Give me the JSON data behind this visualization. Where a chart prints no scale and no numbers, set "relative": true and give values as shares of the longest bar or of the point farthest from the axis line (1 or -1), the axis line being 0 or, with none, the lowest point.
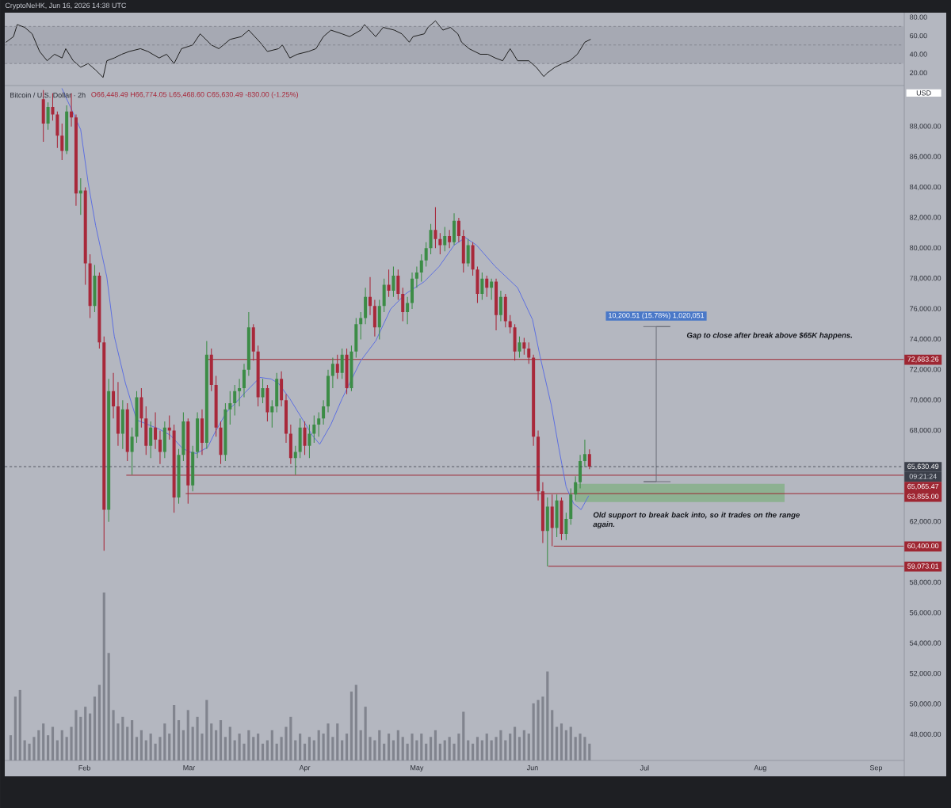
{
  "chart_data": [
    {
      "type": "line",
      "title": "CryptoNeHK, Jun 16, 2026 14:38 UTC",
      "xlim": [
        "2026-01-10T16:00",
        "2026-09-08T08:00"
      ],
      "ylim": [
        8,
        84
      ],
      "yticks": [
        {
          "value": 20,
          "label": "20.00"
        },
        {
          "value": 40,
          "label": "40.00"
        },
        {
          "value": 60,
          "label": "60.00"
        },
        {
          "value": 80,
          "label": "80.00"
        }
      ],
      "tick_labels": "y",
      "bands": [
        {
          "axis": "y",
          "from": 30,
          "to": 70,
          "color": "#a6a9b3"
        }
      ],
      "ref_lines": [
        {
          "axis": "y",
          "value": 70,
          "color": "#7d808a",
          "line_style": "dashed"
        },
        {
          "axis": "y",
          "value": 50,
          "color": "#7d808a",
          "line_style": "dashed"
        },
        {
          "axis": "y",
          "value": 30,
          "color": "#7d808a",
          "line_style": "dashed"
        }
      ],
      "x": [
        "2026-01-11",
        "2026-01-13",
        "2026-01-14",
        "2026-01-16",
        "2026-01-18",
        "2026-01-20",
        "2026-01-22",
        "2026-01-24",
        "2026-01-26",
        "2026-01-27",
        "2026-01-29",
        "2026-01-31",
        "2026-02-02",
        "2026-02-04",
        "2026-02-06",
        "2026-02-07",
        "2026-02-09",
        "2026-02-11",
        "2026-02-13",
        "2026-02-16",
        "2026-02-18",
        "2026-02-21",
        "2026-02-23",
        "2026-02-25",
        "2026-02-27",
        "2026-03-02",
        "2026-03-04",
        "2026-03-07",
        "2026-03-09",
        "2026-03-12",
        "2026-03-15",
        "2026-03-17",
        "2026-03-20",
        "2026-03-22",
        "2026-03-25",
        "2026-03-26",
        "2026-03-28",
        "2026-03-30",
        "2026-04-02",
        "2026-04-04",
        "2026-04-06",
        "2026-04-08",
        "2026-04-11",
        "2026-04-13",
        "2026-04-16",
        "2026-04-17",
        "2026-04-20",
        "2026-04-22",
        "2026-04-25",
        "2026-04-27",
        "2026-04-29",
        "2026-04-30",
        "2026-05-03",
        "2026-05-04",
        "2026-05-06",
        "2026-05-08",
        "2026-05-10",
        "2026-05-12",
        "2026-05-13",
        "2026-05-15",
        "2026-05-18",
        "2026-05-20",
        "2026-05-22",
        "2026-05-24",
        "2026-05-26",
        "2026-05-28",
        "2026-05-31",
        "2026-06-02",
        "2026-06-04",
        "2026-06-05",
        "2026-06-07",
        "2026-06-09",
        "2026-06-11",
        "2026-06-13",
        "2026-06-15",
        "2026-06-16T12:00"
      ],
      "series": [
        {
          "color": "#1e1e1e",
          "values": [
            53,
            59,
            72,
            69,
            62,
            43,
            33,
            40,
            36,
            46,
            33,
            26,
            30,
            23,
            15,
            33,
            36,
            40,
            43,
            46,
            43,
            36,
            40,
            30,
            46,
            50,
            62,
            50,
            46,
            56,
            59,
            66,
            53,
            43,
            46,
            50,
            36,
            40,
            43,
            46,
            59,
            66,
            62,
            59,
            66,
            72,
            59,
            69,
            66,
            62,
            53,
            59,
            62,
            69,
            76,
            66,
            69,
            62,
            53,
            46,
            40,
            40,
            36,
            33,
            46,
            33,
            33,
            26,
            16,
            20,
            26,
            30,
            33,
            40,
            53,
            56
          ]
        }
      ]
    },
    {
      "type": "candlestick",
      "title": "Bitcoin / U.S. Dollar · 2h",
      "subtitle": "O66,448.49 H66,774.05 L65,468.60 C65,630.49 -830.00 (-1.25%)",
      "xlim": [
        "2026-01-10T16:00",
        "2026-09-08T08:00"
      ],
      "ylim": [
        46300,
        90600
      ],
      "xticks": [
        {
          "value": "2026-02-01",
          "label": "Feb"
        },
        {
          "value": "2026-03-01",
          "label": "Mar"
        },
        {
          "value": "2026-04-01",
          "label": "Apr"
        },
        {
          "value": "2026-05-01",
          "label": "May"
        },
        {
          "value": "2026-06-01",
          "label": "Jun"
        },
        {
          "value": "2026-07-01",
          "label": "Jul"
        },
        {
          "value": "2026-08-01",
          "label": "Aug"
        },
        {
          "value": "2026-09-01",
          "label": "Sep"
        }
      ],
      "yticks": [
        {
          "value": 48000,
          "label": "48,000.00"
        },
        {
          "value": 50000,
          "label": "50,000.00"
        },
        {
          "value": 52000,
          "label": "52,000.00"
        },
        {
          "value": 54000,
          "label": "54,000.00"
        },
        {
          "value": 56000,
          "label": "56,000.00"
        },
        {
          "value": 58000,
          "label": "58,000.00"
        },
        {
          "value": 62000,
          "label": "62,000.00"
        },
        {
          "value": 68000,
          "label": "68,000.00"
        },
        {
          "value": 70000,
          "label": "70,000.00"
        },
        {
          "value": 72000,
          "label": "72,000.00"
        },
        {
          "value": 74000,
          "label": "74,000.00"
        },
        {
          "value": 76000,
          "label": "76,000.00"
        },
        {
          "value": 78000,
          "label": "78,000.00"
        },
        {
          "value": 80000,
          "label": "80,000.00"
        },
        {
          "value": 82000,
          "label": "82,000.00"
        },
        {
          "value": 84000,
          "label": "84,000.00"
        },
        {
          "value": 86000,
          "label": "86,000.00"
        },
        {
          "value": 88000,
          "label": "88,000.00"
        }
      ],
      "x": [
        "2026-01-21T00:00",
        "2026-01-22T06:00",
        "2026-01-23T12:00",
        "2026-01-24T18:00",
        "2026-01-26T00:00",
        "2026-01-27T06:00",
        "2026-01-28T12:00",
        "2026-01-29T18:00",
        "2026-01-31T00:00",
        "2026-02-01T06:00",
        "2026-02-02T12:00",
        "2026-02-03T18:00",
        "2026-02-05T00:00",
        "2026-02-06T06:00",
        "2026-02-07T12:00",
        "2026-02-08T18:00",
        "2026-02-10T00:00",
        "2026-02-11T06:00",
        "2026-02-12T12:00",
        "2026-02-13T18:00",
        "2026-02-15T00:00",
        "2026-02-16T06:00",
        "2026-02-17T12:00",
        "2026-02-18T18:00",
        "2026-02-20T00:00",
        "2026-02-21T06:00",
        "2026-02-22T12:00",
        "2026-02-23T18:00",
        "2026-02-25T00:00",
        "2026-02-26T06:00",
        "2026-02-27T12:00",
        "2026-02-28T18:00",
        "2026-03-02T00:00",
        "2026-03-03T06:00",
        "2026-03-04T12:00",
        "2026-03-05T18:00",
        "2026-03-07T00:00",
        "2026-03-08T06:00",
        "2026-03-09T12:00",
        "2026-03-10T18:00",
        "2026-03-12T00:00",
        "2026-03-13T06:00",
        "2026-03-14T12:00",
        "2026-03-15T18:00",
        "2026-03-17T00:00",
        "2026-03-18T06:00",
        "2026-03-19T12:00",
        "2026-03-20T18:00",
        "2026-03-22T00:00",
        "2026-03-23T06:00",
        "2026-03-24T12:00",
        "2026-03-25T18:00",
        "2026-03-27T00:00",
        "2026-03-28T06:00",
        "2026-03-29T12:00",
        "2026-03-30T18:00",
        "2026-04-01T00:00",
        "2026-04-02T06:00",
        "2026-04-03T12:00",
        "2026-04-04T18:00",
        "2026-04-06T00:00",
        "2026-04-07T06:00",
        "2026-04-08T12:00",
        "2026-04-09T18:00",
        "2026-04-11T00:00",
        "2026-04-12T06:00",
        "2026-04-13T12:00",
        "2026-04-14T18:00",
        "2026-04-16T00:00",
        "2026-04-17T06:00",
        "2026-04-18T12:00",
        "2026-04-19T18:00",
        "2026-04-21T00:00",
        "2026-04-22T06:00",
        "2026-04-23T12:00",
        "2026-04-24T18:00",
        "2026-04-26T00:00",
        "2026-04-27T06:00",
        "2026-04-28T12:00",
        "2026-04-29T18:00",
        "2026-05-01T00:00",
        "2026-05-02T06:00",
        "2026-05-03T12:00",
        "2026-05-04T18:00",
        "2026-05-06T00:00",
        "2026-05-07T06:00",
        "2026-05-08T12:00",
        "2026-05-09T18:00",
        "2026-05-11T00:00",
        "2026-05-12T06:00",
        "2026-05-13T12:00",
        "2026-05-14T18:00",
        "2026-05-16T00:00",
        "2026-05-17T06:00",
        "2026-05-18T12:00",
        "2026-05-19T18:00",
        "2026-05-21T00:00",
        "2026-05-22T06:00",
        "2026-05-23T12:00",
        "2026-05-24T18:00",
        "2026-05-26T00:00",
        "2026-05-27T06:00",
        "2026-05-28T12:00",
        "2026-05-29T18:00",
        "2026-05-31T00:00",
        "2026-06-01T06:00",
        "2026-06-02T12:00",
        "2026-06-03T18:00",
        "2026-06-05T00:00",
        "2026-06-06T06:00",
        "2026-06-07T12:00",
        "2026-06-08T18:00",
        "2026-06-10T00:00",
        "2026-06-11T06:00",
        "2026-06-12T12:00",
        "2026-06-13T18:00",
        "2026-06-15T00:00",
        "2026-06-16T06:00"
      ],
      "ohlc": [
        [
          89800,
          90400,
          87000,
          88200
        ],
        [
          88200,
          89600,
          87800,
          89300
        ],
        [
          89300,
          90200,
          88400,
          88800
        ],
        [
          88800,
          89000,
          86600,
          87400
        ],
        [
          87400,
          88200,
          85800,
          86400
        ],
        [
          86400,
          89400,
          86200,
          89000
        ],
        [
          89000,
          90200,
          88000,
          88600
        ],
        [
          88600,
          88800,
          82800,
          83600
        ],
        [
          83600,
          84600,
          82200,
          83800
        ],
        [
          83800,
          84000,
          77600,
          79000
        ],
        [
          79000,
          79600,
          75400,
          76200
        ],
        [
          76200,
          78900,
          75800,
          78200
        ],
        [
          78200,
          78400,
          73400,
          73800
        ],
        [
          73800,
          74200,
          60100,
          62800
        ],
        [
          62800,
          71400,
          62000,
          70600
        ],
        [
          70600,
          71800,
          68800,
          69600
        ],
        [
          69600,
          71200,
          67000,
          67800
        ],
        [
          67800,
          70000,
          66800,
          69400
        ],
        [
          69400,
          69800,
          66000,
          66600
        ],
        [
          66600,
          68200,
          65100,
          67600
        ],
        [
          67600,
          70600,
          67200,
          70200
        ],
        [
          70200,
          70800,
          68200,
          68800
        ],
        [
          68800,
          69600,
          66400,
          67000
        ],
        [
          67000,
          68600,
          66200,
          68200
        ],
        [
          68200,
          69200,
          66800,
          67400
        ],
        [
          67400,
          68000,
          65800,
          66600
        ],
        [
          66600,
          68600,
          66200,
          68200
        ],
        [
          68200,
          69000,
          67400,
          68000
        ],
        [
          68000,
          68400,
          62600,
          63600
        ],
        [
          63600,
          66800,
          63200,
          66400
        ],
        [
          66400,
          69200,
          66000,
          68600
        ],
        [
          68600,
          68800,
          63200,
          64400
        ],
        [
          64400,
          67000,
          64000,
          66600
        ],
        [
          66600,
          69200,
          66200,
          68800
        ],
        [
          68800,
          69400,
          66400,
          67200
        ],
        [
          67200,
          73900,
          66800,
          73000
        ],
        [
          73000,
          73400,
          70600,
          71000
        ],
        [
          71000,
          71600,
          67600,
          68200
        ],
        [
          68200,
          68600,
          65800,
          66400
        ],
        [
          66400,
          69800,
          66000,
          69400
        ],
        [
          69400,
          70600,
          68400,
          69800
        ],
        [
          69800,
          71000,
          69000,
          70600
        ],
        [
          70600,
          71400,
          69600,
          70800
        ],
        [
          70800,
          72400,
          70200,
          72000
        ],
        [
          72000,
          75800,
          71600,
          74800
        ],
        [
          74800,
          75000,
          72600,
          73200
        ],
        [
          73200,
          73600,
          69600,
          70200
        ],
        [
          70200,
          71400,
          69800,
          70800
        ],
        [
          70800,
          71000,
          68600,
          69200
        ],
        [
          69200,
          70000,
          68200,
          69600
        ],
        [
          69600,
          71800,
          69200,
          71400
        ],
        [
          71400,
          71900,
          69600,
          70000
        ],
        [
          70000,
          70400,
          67200,
          67800
        ],
        [
          67800,
          68400,
          65800,
          66200
        ],
        [
          66200,
          67000,
          65100,
          66600
        ],
        [
          66600,
          68800,
          66200,
          68200
        ],
        [
          68200,
          68600,
          66400,
          67000
        ],
        [
          67000,
          68400,
          66200,
          67800
        ],
        [
          67800,
          69000,
          67200,
          68400
        ],
        [
          68400,
          69200,
          67600,
          68800
        ],
        [
          68800,
          70000,
          68400,
          69600
        ],
        [
          69600,
          72000,
          69200,
          71600
        ],
        [
          71600,
          72800,
          70800,
          72400
        ],
        [
          72400,
          73000,
          71400,
          71800
        ],
        [
          71800,
          73400,
          71400,
          73000
        ],
        [
          73000,
          73400,
          70400,
          70800
        ],
        [
          70800,
          73600,
          70600,
          73200
        ],
        [
          73200,
          75400,
          72800,
          75000
        ],
        [
          75000,
          75800,
          74000,
          75400
        ],
        [
          75400,
          77400,
          75000,
          76800
        ],
        [
          76800,
          78100,
          75600,
          76200
        ],
        [
          76200,
          76600,
          74200,
          74800
        ],
        [
          74800,
          76600,
          74000,
          76200
        ],
        [
          76200,
          78000,
          75800,
          77600
        ],
        [
          77600,
          78600,
          76800,
          77200
        ],
        [
          77200,
          78800,
          76800,
          78200
        ],
        [
          78200,
          78600,
          76600,
          77000
        ],
        [
          77000,
          77400,
          75200,
          75800
        ],
        [
          75800,
          76800,
          75000,
          76400
        ],
        [
          76400,
          78400,
          76000,
          78000
        ],
        [
          78000,
          78800,
          77400,
          78400
        ],
        [
          78400,
          79600,
          77800,
          79200
        ],
        [
          79200,
          80400,
          78800,
          80000
        ],
        [
          80000,
          81600,
          79600,
          81200
        ],
        [
          81200,
          82700,
          80000,
          80600
        ],
        [
          80600,
          81000,
          79600,
          80200
        ],
        [
          80200,
          81400,
          79800,
          80800
        ],
        [
          80800,
          81200,
          80000,
          80400
        ],
        [
          80400,
          82300,
          80200,
          81800
        ],
        [
          81800,
          82000,
          80400,
          80800
        ],
        [
          80800,
          81200,
          78400,
          79000
        ],
        [
          79000,
          80600,
          78800,
          80200
        ],
        [
          80200,
          80400,
          78200,
          78600
        ],
        [
          78600,
          78800,
          76400,
          77000
        ],
        [
          77000,
          78400,
          76600,
          78000
        ],
        [
          78000,
          78200,
          76800,
          77400
        ],
        [
          77400,
          78000,
          76600,
          77800
        ],
        [
          77800,
          78000,
          74600,
          75600
        ],
        [
          75600,
          77200,
          75200,
          76800
        ],
        [
          76800,
          77000,
          74800,
          75200
        ],
        [
          75200,
          75600,
          74400,
          74800
        ],
        [
          74800,
          75000,
          72600,
          73200
        ],
        [
          73200,
          74200,
          72800,
          73800
        ],
        [
          73800,
          74100,
          73000,
          73400
        ],
        [
          73400,
          73800,
          72400,
          72800
        ],
        [
          72800,
          73000,
          67000,
          67600
        ],
        [
          67600,
          68000,
          63400,
          64000
        ],
        [
          64000,
          64600,
          60600,
          61400
        ],
        [
          61400,
          63600,
          59073.01,
          63000
        ],
        [
          63000,
          63800,
          60400,
          61600
        ],
        [
          61600,
          63800,
          61000,
          63400
        ],
        [
          63400,
          63600,
          60800,
          61200
        ],
        [
          61200,
          62600,
          60800,
          62200
        ],
        [
          62200,
          64200,
          61800,
          63800
        ],
        [
          63800,
          65000,
          63400,
          64600
        ],
        [
          64600,
          66400,
          64200,
          66000
        ],
        [
          66000,
          67400,
          65600,
          66448.49
        ],
        [
          66448.49,
          66774.05,
          65468.6,
          65630.49
        ]
      ],
      "colors": [
        "#a8283a",
        "#3c8c46",
        "#a8283a",
        "#a8283a",
        "#a8283a",
        "#3c8c46",
        "#a8283a",
        "#a8283a",
        "#3c8c46",
        "#a8283a",
        "#a8283a",
        "#3c8c46",
        "#a8283a",
        "#a8283a",
        "#3c8c46",
        "#a8283a",
        "#a8283a",
        "#3c8c46",
        "#a8283a",
        "#3c8c46",
        "#3c8c46",
        "#a8283a",
        "#a8283a",
        "#3c8c46",
        "#a8283a",
        "#a8283a",
        "#3c8c46",
        "#a8283a",
        "#a8283a",
        "#3c8c46",
        "#3c8c46",
        "#a8283a",
        "#3c8c46",
        "#3c8c46",
        "#a8283a",
        "#3c8c46",
        "#a8283a",
        "#a8283a",
        "#a8283a",
        "#3c8c46",
        "#3c8c46",
        "#3c8c46",
        "#3c8c46",
        "#3c8c46",
        "#3c8c46",
        "#a8283a",
        "#a8283a",
        "#3c8c46",
        "#a8283a",
        "#3c8c46",
        "#3c8c46",
        "#a8283a",
        "#a8283a",
        "#a8283a",
        "#3c8c46",
        "#3c8c46",
        "#a8283a",
        "#3c8c46",
        "#3c8c46",
        "#3c8c46",
        "#3c8c46",
        "#3c8c46",
        "#3c8c46",
        "#a8283a",
        "#3c8c46",
        "#a8283a",
        "#3c8c46",
        "#3c8c46",
        "#3c8c46",
        "#3c8c46",
        "#a8283a",
        "#a8283a",
        "#3c8c46",
        "#3c8c46",
        "#a8283a",
        "#3c8c46",
        "#a8283a",
        "#a8283a",
        "#3c8c46",
        "#3c8c46",
        "#3c8c46",
        "#3c8c46",
        "#3c8c46",
        "#3c8c46",
        "#a8283a",
        "#a8283a",
        "#3c8c46",
        "#a8283a",
        "#3c8c46",
        "#a8283a",
        "#a8283a",
        "#3c8c46",
        "#a8283a",
        "#a8283a",
        "#3c8c46",
        "#a8283a",
        "#3c8c46",
        "#a8283a",
        "#3c8c46",
        "#a8283a",
        "#a8283a",
        "#a8283a",
        "#3c8c46",
        "#a8283a",
        "#a8283a",
        "#a8283a",
        "#a8283a",
        "#a8283a",
        "#3c8c46",
        "#a8283a",
        "#3c8c46",
        "#a8283a",
        "#3c8c46",
        "#3c8c46",
        "#3c8c46",
        "#3c8c46",
        "#3c8c46",
        "#a8283a"
      ],
      "series": [
        {
          "type": "line",
          "color": "#8db191",
          "x": [
            "2026-06-12T12:00",
            "2026-08-07T12:00"
          ],
          "values": [
            null,
            null
          ],
          "lower": [
            63300,
            63300
          ],
          "upper": [
            64500,
            64500
          ]
        },
        {
          "type": "line",
          "color": "#9e2632",
          "x": [
            "2026-03-05T14:00",
            "2026-09-08T08:00"
          ],
          "values": [
            72683.26,
            72683.26
          ],
          "value_labels": [
            null,
            "72,683.26"
          ]
        },
        {
          "type": "line",
          "color": "#9e2632",
          "x": [
            "2026-02-12T07:00",
            "2026-09-08T08:00"
          ],
          "values": [
            65065.47,
            65065.47
          ],
          "value_labels": [
            null,
            "65,065.47"
          ]
        },
        {
          "type": "line",
          "color": "#9e2632",
          "x": [
            "2026-02-28T05:00",
            "2026-09-08T08:00"
          ],
          "values": [
            63855,
            63855
          ],
          "value_labels": [
            null,
            "63,855.00"
          ]
        },
        {
          "type": "line",
          "color": "#9e2632",
          "x": [
            "2026-06-06T18:00",
            "2026-09-08T08:00"
          ],
          "values": [
            60400,
            60400
          ],
          "value_labels": [
            null,
            "60,400.00"
          ]
        },
        {
          "type": "line",
          "color": "#9e2632",
          "x": [
            "2026-06-05T07:00",
            "2026-09-08T08:00"
          ],
          "values": [
            59073.01,
            59073.01
          ],
          "value_labels": [
            null,
            "59,073.01"
          ]
        },
        {
          "type": "line",
          "color": "#5d6fe0",
          "x": [
            "2026-01-26",
            "2026-01-31",
            "2026-02-02",
            "2026-02-04",
            "2026-02-07",
            "2026-02-09",
            "2026-02-12",
            "2026-02-15",
            "2026-02-18",
            "2026-02-21",
            "2026-02-24",
            "2026-02-27",
            "2026-03-01",
            "2026-03-03",
            "2026-03-06",
            "2026-03-08",
            "2026-03-11",
            "2026-03-13",
            "2026-03-16",
            "2026-03-20",
            "2026-03-23",
            "2026-03-25",
            "2026-03-28",
            "2026-03-31",
            "2026-04-03",
            "2026-04-05",
            "2026-04-08",
            "2026-04-11",
            "2026-04-16",
            "2026-04-20",
            "2026-04-24",
            "2026-04-28",
            "2026-05-03",
            "2026-05-07",
            "2026-05-11",
            "2026-05-14",
            "2026-05-17",
            "2026-05-22",
            "2026-05-28",
            "2026-06-01",
            "2026-06-03",
            "2026-06-06",
            "2026-06-08",
            "2026-06-10",
            "2026-06-12",
            "2026-06-14",
            "2026-06-16"
          ],
          "values": [
            90500,
            87800,
            84300,
            81500,
            78100,
            74200,
            71100,
            68700,
            68400,
            68100,
            67700,
            66900,
            66600,
            66500,
            66900,
            67900,
            69200,
            69700,
            70500,
            71500,
            71400,
            71100,
            70100,
            68900,
            67700,
            67100,
            68400,
            70100,
            72600,
            73900,
            76000,
            77000,
            77800,
            78800,
            80200,
            80700,
            80200,
            78800,
            77400,
            75300,
            72900,
            69700,
            66900,
            64300,
            63200,
            62800,
            63700
          ]
        },
        {
          "type": "line",
          "color": "#6b6e78",
          "x": [
            "2026-06-30T18:00",
            "2026-07-07T21:00",
            "2026-07-04T03:00",
            "2026-07-04T03:00",
            "2026-06-30T18:00",
            "2026-07-07T21:00"
          ],
          "values": [
            74843,
            74843,
            74843,
            64642,
            64642,
            64642
          ]
        }
      ],
      "ref_lines": [
        {
          "axis": "y",
          "value": 65630.49,
          "label": "65,630.49",
          "color": "#3b3f4a",
          "line_style": "dashed"
        }
      ],
      "annotations": [
        "USD",
        "09:21:24",
        "Gap to close after break above $65K happens.",
        "Old support to break back into, so it trades on the range again.",
        {
          "text": "10,200.51 (15.78%) 1,020,051",
          "x": "2026-07-04T03:00",
          "y": 74843
        }
      ]
    },
    {
      "type": "bar",
      "relative": true,
      "color": "#81848e",
      "xlim": [
        "2026-01-10T16:00",
        "2026-09-08T08:00"
      ],
      "tick_labels": false,
      "x": [
        "2026-01-12T06:00",
        "2026-01-13T12:00",
        "2026-01-14T18:00",
        "2026-01-16T00:00",
        "2026-01-17T06:00",
        "2026-01-18T12:00",
        "2026-01-19T18:00",
        "2026-01-21T00:00",
        "2026-01-22T06:00",
        "2026-01-23T12:00",
        "2026-01-24T18:00",
        "2026-01-26T00:00",
        "2026-01-27T06:00",
        "2026-01-28T12:00",
        "2026-01-29T18:00",
        "2026-01-31T00:00",
        "2026-02-01T06:00",
        "2026-02-02T12:00",
        "2026-02-03T18:00",
        "2026-02-05T00:00",
        "2026-02-06T06:00",
        "2026-02-07T12:00",
        "2026-02-08T18:00",
        "2026-02-10T00:00",
        "2026-02-11T06:00",
        "2026-02-12T12:00",
        "2026-02-13T18:00",
        "2026-02-15T00:00",
        "2026-02-16T06:00",
        "2026-02-17T12:00",
        "2026-02-18T18:00",
        "2026-02-20T00:00",
        "2026-02-21T06:00",
        "2026-02-22T12:00",
        "2026-02-23T18:00",
        "2026-02-25T00:00",
        "2026-02-26T06:00",
        "2026-02-27T12:00",
        "2026-02-28T18:00",
        "2026-03-02T00:00",
        "2026-03-03T06:00",
        "2026-03-04T12:00",
        "2026-03-05T18:00",
        "2026-03-07T00:00",
        "2026-03-08T06:00",
        "2026-03-09T12:00",
        "2026-03-10T18:00",
        "2026-03-12T00:00",
        "2026-03-13T06:00",
        "2026-03-14T12:00",
        "2026-03-15T18:00",
        "2026-03-17T00:00",
        "2026-03-18T06:00",
        "2026-03-19T12:00",
        "2026-03-20T18:00",
        "2026-03-22T00:00",
        "2026-03-23T06:00",
        "2026-03-24T12:00",
        "2026-03-25T18:00",
        "2026-03-27T00:00",
        "2026-03-28T06:00",
        "2026-03-29T12:00",
        "2026-03-30T18:00",
        "2026-04-01T00:00",
        "2026-04-02T06:00",
        "2026-04-03T12:00",
        "2026-04-04T18:00",
        "2026-04-06T00:00",
        "2026-04-07T06:00",
        "2026-04-08T12:00",
        "2026-04-09T18:00",
        "2026-04-11T00:00",
        "2026-04-12T06:00",
        "2026-04-13T12:00",
        "2026-04-14T18:00",
        "2026-04-16T00:00",
        "2026-04-17T06:00",
        "2026-04-18T12:00",
        "2026-04-19T18:00",
        "2026-04-21T00:00",
        "2026-04-22T06:00",
        "2026-04-23T12:00",
        "2026-04-24T18:00",
        "2026-04-26T00:00",
        "2026-04-27T06:00",
        "2026-04-28T12:00",
        "2026-04-29T18:00",
        "2026-05-01T00:00",
        "2026-05-02T06:00",
        "2026-05-03T12:00",
        "2026-05-04T18:00",
        "2026-05-06T00:00",
        "2026-05-07T06:00",
        "2026-05-08T12:00",
        "2026-05-09T18:00",
        "2026-05-11T00:00",
        "2026-05-12T06:00",
        "2026-05-13T12:00",
        "2026-05-14T18:00",
        "2026-05-16T00:00",
        "2026-05-17T06:00",
        "2026-05-18T12:00",
        "2026-05-19T18:00",
        "2026-05-21T00:00",
        "2026-05-22T06:00",
        "2026-05-23T12:00",
        "2026-05-24T18:00",
        "2026-05-26T00:00",
        "2026-05-27T06:00",
        "2026-05-28T12:00",
        "2026-05-29T18:00",
        "2026-05-31T00:00",
        "2026-06-01T06:00",
        "2026-06-02T12:00",
        "2026-06-03T18:00",
        "2026-06-05T00:00",
        "2026-06-06T06:00",
        "2026-06-07T12:00",
        "2026-06-08T18:00",
        "2026-06-10T00:00",
        "2026-06-11T06:00",
        "2026-06-12T12:00",
        "2026-06-13T18:00",
        "2026-06-15T00:00",
        "2026-06-16T06:00"
      ],
      "values": [
        0.15,
        0.38,
        0.42,
        0.12,
        0.1,
        0.14,
        0.18,
        0.22,
        0.15,
        0.2,
        0.12,
        0.18,
        0.14,
        0.2,
        0.3,
        0.26,
        0.32,
        0.28,
        0.38,
        0.45,
        1,
        0.64,
        0.3,
        0.22,
        0.26,
        0.2,
        0.24,
        0.14,
        0.18,
        0.12,
        0.16,
        0.1,
        0.14,
        0.22,
        0.16,
        0.33,
        0.24,
        0.18,
        0.3,
        0.2,
        0.26,
        0.16,
        0.36,
        0.22,
        0.18,
        0.24,
        0.14,
        0.2,
        0.12,
        0.16,
        0.1,
        0.18,
        0.14,
        0.16,
        0.1,
        0.12,
        0.18,
        0.1,
        0.14,
        0.2,
        0.26,
        0.12,
        0.16,
        0.1,
        0.14,
        0.12,
        0.18,
        0.16,
        0.22,
        0.14,
        0.22,
        0.12,
        0.16,
        0.41,
        0.45,
        0.18,
        0.32,
        0.14,
        0.12,
        0.18,
        0.1,
        0.16,
        0.12,
        0.18,
        0.14,
        0.1,
        0.16,
        0.12,
        0.16,
        0.1,
        0.14,
        0.18,
        0.1,
        0.12,
        0.14,
        0.1,
        0.16,
        0.29,
        0.12,
        0.1,
        0.14,
        0.12,
        0.16,
        0.12,
        0.14,
        0.18,
        0.12,
        0.16,
        0.2,
        0.14,
        0.18,
        0.16,
        0.34,
        0.36,
        0.38,
        0.53,
        0.3,
        0.2,
        0.22,
        0.18,
        0.2,
        0.14,
        0.16,
        0.14,
        0.1
      ]
    }
  ]
}
